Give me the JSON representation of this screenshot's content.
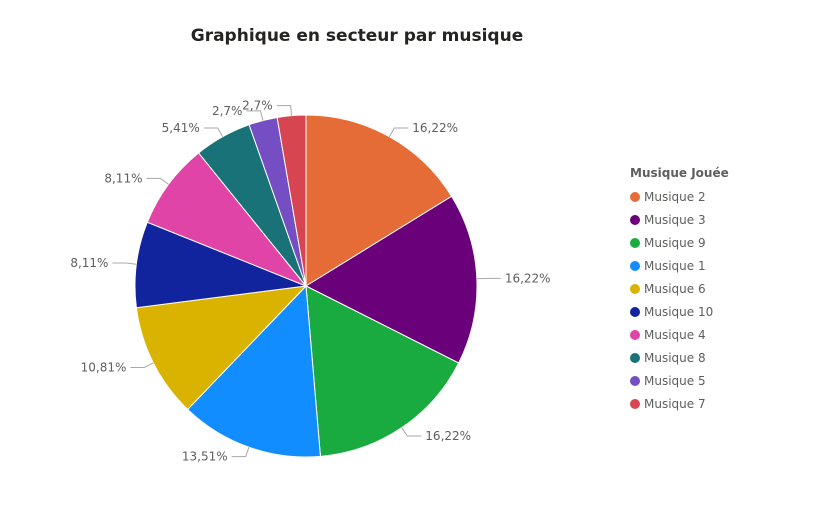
{
  "chart_data": {
    "type": "pie",
    "title": "Graphique en secteur par musique",
    "legend_title": "Musique Jouée",
    "legend_position": "right",
    "slices": [
      {
        "name": "Musique 2",
        "value": 16.22,
        "label": "16,22%",
        "color": "#E66C37"
      },
      {
        "name": "Musique 3",
        "value": 16.22,
        "label": "16,22%",
        "color": "#6B007B"
      },
      {
        "name": "Musique 9",
        "value": 16.22,
        "label": "16,22%",
        "color": "#1AAB40"
      },
      {
        "name": "Musique 1",
        "value": 13.51,
        "label": "13,51%",
        "color": "#118DFF"
      },
      {
        "name": "Musique 6",
        "value": 10.81,
        "label": "10,81%",
        "color": "#D9B300"
      },
      {
        "name": "Musique 10",
        "value": 8.11,
        "label": "8,11%",
        "color": "#12239E"
      },
      {
        "name": "Musique 4",
        "value": 8.11,
        "label": "8,11%",
        "color": "#E044A7"
      },
      {
        "name": "Musique 8",
        "value": 5.41,
        "label": "5,41%",
        "color": "#197278"
      },
      {
        "name": "Musique 5",
        "value": 2.7,
        "label": "2,7%",
        "color": "#744EC2"
      },
      {
        "name": "Musique 7",
        "value": 2.7,
        "label": "2,7%",
        "color": "#D64550"
      }
    ]
  }
}
